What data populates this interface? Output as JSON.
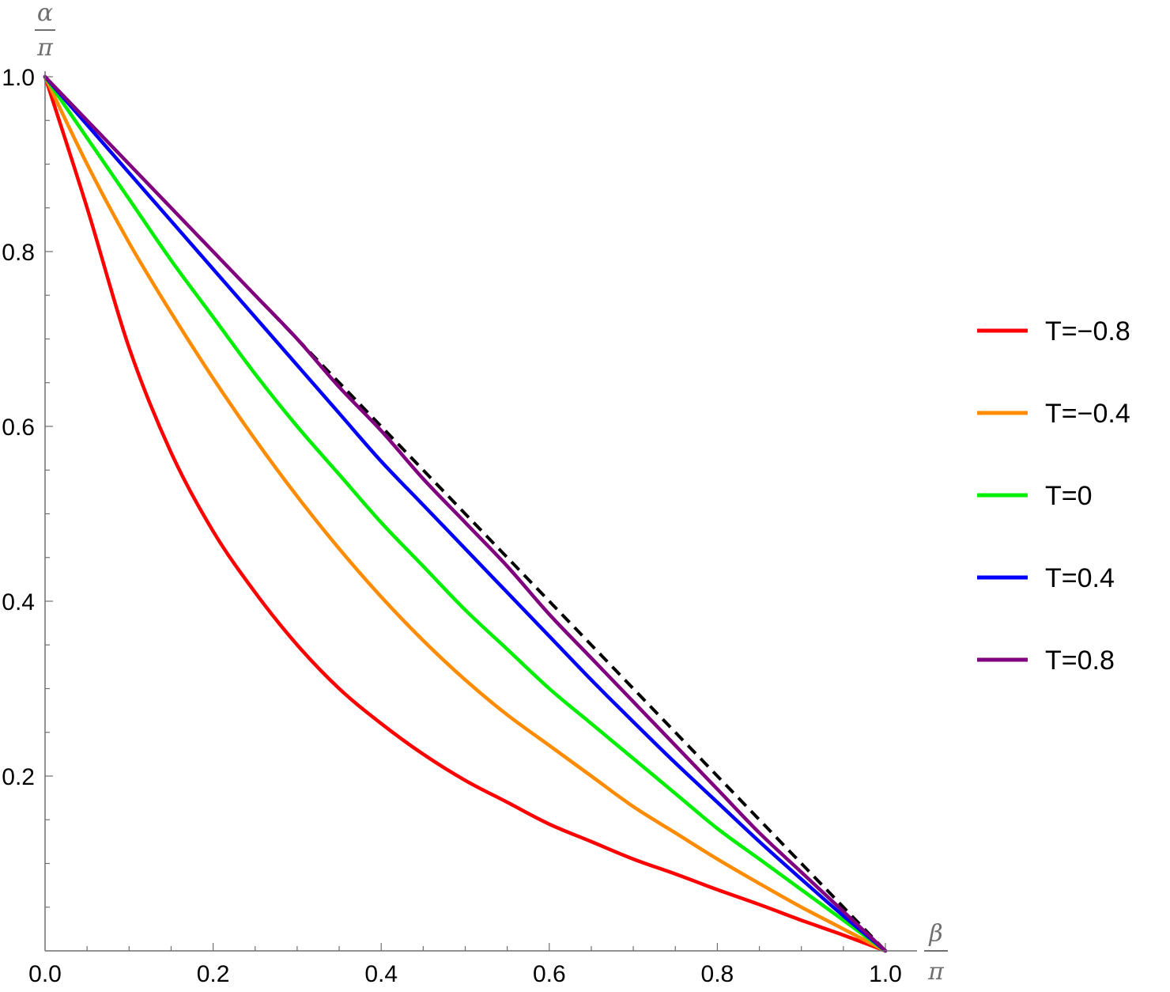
{
  "chart_data": {
    "type": "line",
    "xlabel": {
      "num": "β",
      "den": "π"
    },
    "ylabel": {
      "num": "α",
      "den": "π"
    },
    "xlim": [
      0,
      1
    ],
    "ylim": [
      0,
      1
    ],
    "x_ticks": [
      "0.0",
      "0.2",
      "0.4",
      "0.6",
      "0.8",
      "1.0"
    ],
    "y_ticks": [
      "0.2",
      "0.4",
      "0.6",
      "0.8",
      "1.0"
    ],
    "legend_position": "right",
    "grid": false,
    "series": [
      {
        "name": "T=−0.8",
        "color": "#ff0000",
        "x": [
          0,
          0.05,
          0.1,
          0.15,
          0.2,
          0.25,
          0.3,
          0.35,
          0.4,
          0.45,
          0.5,
          0.55,
          0.6,
          0.65,
          0.7,
          0.75,
          0.8,
          0.85,
          0.9,
          0.95,
          1.0
        ],
        "y": [
          1.0,
          0.85,
          0.69,
          0.57,
          0.48,
          0.41,
          0.35,
          0.3,
          0.26,
          0.225,
          0.195,
          0.17,
          0.145,
          0.125,
          0.105,
          0.088,
          0.07,
          0.053,
          0.035,
          0.018,
          0.0
        ]
      },
      {
        "name": "T=−0.4",
        "color": "#ff8c00",
        "x": [
          0,
          0.05,
          0.1,
          0.15,
          0.2,
          0.25,
          0.3,
          0.35,
          0.4,
          0.45,
          0.5,
          0.55,
          0.6,
          0.65,
          0.7,
          0.75,
          0.8,
          0.85,
          0.9,
          0.95,
          1.0
        ],
        "y": [
          1.0,
          0.9,
          0.81,
          0.73,
          0.655,
          0.585,
          0.52,
          0.46,
          0.405,
          0.355,
          0.31,
          0.27,
          0.235,
          0.2,
          0.165,
          0.135,
          0.105,
          0.077,
          0.05,
          0.025,
          0.0
        ]
      },
      {
        "name": "T=0",
        "color": "#00ee00",
        "x": [
          0,
          0.05,
          0.1,
          0.15,
          0.2,
          0.25,
          0.3,
          0.35,
          0.4,
          0.45,
          0.5,
          0.55,
          0.6,
          0.65,
          0.7,
          0.75,
          0.8,
          0.85,
          0.9,
          0.95,
          1.0
        ],
        "y": [
          1.0,
          0.93,
          0.86,
          0.79,
          0.725,
          0.66,
          0.6,
          0.545,
          0.49,
          0.44,
          0.39,
          0.345,
          0.3,
          0.26,
          0.22,
          0.18,
          0.14,
          0.105,
          0.07,
          0.035,
          0.0
        ]
      },
      {
        "name": "T=0.4",
        "color": "#0000ff",
        "x": [
          0,
          0.05,
          0.1,
          0.15,
          0.2,
          0.25,
          0.3,
          0.35,
          0.4,
          0.45,
          0.5,
          0.55,
          0.6,
          0.65,
          0.7,
          0.75,
          0.8,
          0.85,
          0.9,
          0.95,
          1.0
        ],
        "y": [
          1.0,
          0.945,
          0.89,
          0.835,
          0.78,
          0.725,
          0.67,
          0.615,
          0.56,
          0.51,
          0.46,
          0.41,
          0.36,
          0.31,
          0.262,
          0.215,
          0.17,
          0.125,
          0.082,
          0.04,
          0.0
        ]
      },
      {
        "name": "T=0.8",
        "color": "#800080",
        "x": [
          0,
          0.05,
          0.1,
          0.15,
          0.2,
          0.25,
          0.3,
          0.35,
          0.4,
          0.45,
          0.5,
          0.55,
          0.6,
          0.65,
          0.7,
          0.75,
          0.8,
          0.85,
          0.9,
          0.95,
          1.0
        ],
        "y": [
          1.0,
          0.95,
          0.9,
          0.85,
          0.8,
          0.75,
          0.7,
          0.645,
          0.595,
          0.54,
          0.49,
          0.44,
          0.385,
          0.335,
          0.285,
          0.235,
          0.185,
          0.135,
          0.09,
          0.045,
          0.0
        ]
      }
    ],
    "reference_line": {
      "style": "dashed",
      "color": "#000000",
      "x": [
        0,
        1
      ],
      "y": [
        1,
        0
      ]
    }
  }
}
